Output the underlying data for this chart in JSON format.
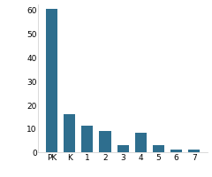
{
  "categories": [
    "PK",
    "K",
    "1",
    "2",
    "3",
    "4",
    "5",
    "6",
    "7"
  ],
  "values": [
    60,
    16,
    11,
    9,
    3,
    8,
    3,
    1,
    1
  ],
  "bar_color": "#2e6e8e",
  "ylim": [
    0,
    62
  ],
  "yticks": [
    0,
    10,
    20,
    30,
    40,
    50,
    60
  ],
  "background_color": "#ffffff",
  "tick_fontsize": 6.5,
  "bar_width": 0.65,
  "figsize": [
    2.4,
    2.01
  ],
  "dpi": 100
}
